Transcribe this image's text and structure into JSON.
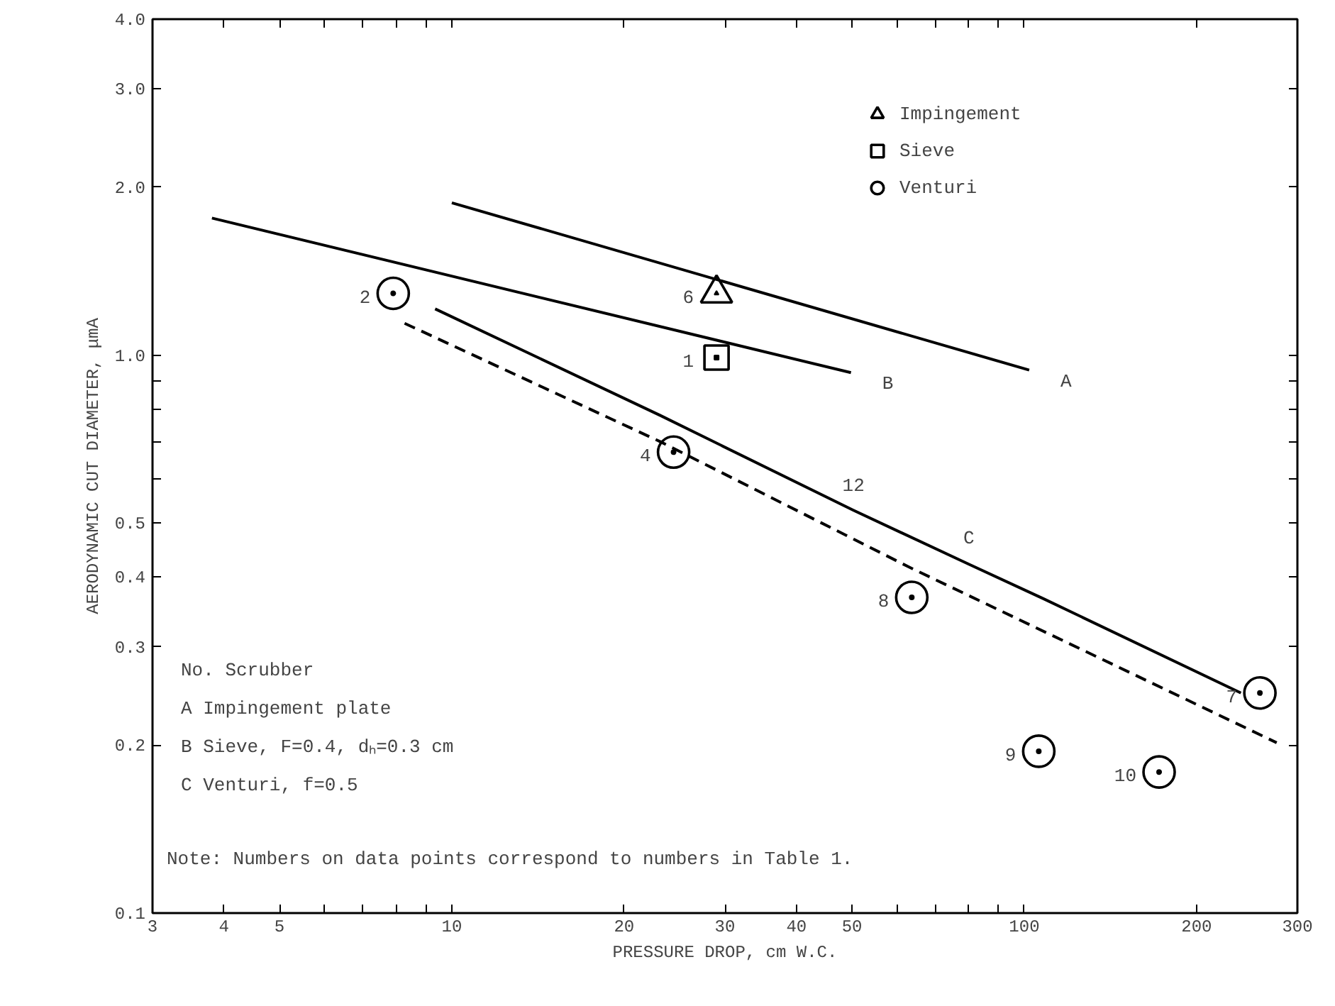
{
  "chart_data": {
    "type": "scatter",
    "xlabel": "PRESSURE DROP, cm W.C.",
    "ylabel": "AERODYNAMIC CUT DIAMETER, μmA",
    "log": "xy",
    "xlim": [
      3,
      300
    ],
    "ylim": [
      0.1,
      4.0
    ],
    "xticks": [
      3,
      4,
      5,
      {
        "value": 6,
        "label": null
      },
      {
        "value": 7,
        "label": null
      },
      {
        "value": 8,
        "label": null
      },
      {
        "value": 9,
        "label": null
      },
      10,
      20,
      30,
      40,
      50,
      {
        "value": 60,
        "label": null
      },
      {
        "value": 70,
        "label": null
      },
      {
        "value": 80,
        "label": null
      },
      {
        "value": 90,
        "label": null
      },
      100,
      200,
      300
    ],
    "yticks": [
      0.1,
      0.2,
      0.3,
      0.4,
      0.5,
      {
        "value": 0.6,
        "label": null
      },
      {
        "value": 0.7,
        "label": null
      },
      {
        "value": 0.8,
        "label": null
      },
      {
        "value": 0.9,
        "label": null
      },
      {
        "value": 1,
        "label": "1.0"
      },
      {
        "value": 2,
        "label": "2.0"
      },
      {
        "value": 3,
        "label": "3.0"
      },
      {
        "value": 4,
        "label": "4.0"
      }
    ],
    "grid": false,
    "legend": "top right",
    "series": [
      {
        "name": "Impingement",
        "type": "scatter",
        "marker": "triangle",
        "color": "#000000",
        "x": [
          29
        ],
        "values": [
          1.29
        ]
      },
      {
        "name": "Sieve",
        "type": "scatter",
        "marker": "square",
        "color": "#000000",
        "x": [
          29
        ],
        "values": [
          0.99
        ]
      },
      {
        "name": "Venturi",
        "marker": "circle",
        "color": "#000000",
        "x": [
          7.9,
          24.4,
          63.6,
          258,
          106,
          172
        ],
        "values": [
          1.29,
          0.67,
          0.368,
          0.248,
          0.195,
          0.179
        ]
      },
      {
        "type": "line",
        "line_style": "solid",
        "color": "#000000",
        "x": [
          10,
          102
        ],
        "values": [
          1.875,
          0.94
        ]
      },
      {
        "type": "line",
        "line_style": "solid",
        "color": "#000000",
        "x": [
          3.81,
          49.8
        ],
        "values": [
          1.76,
          0.93
        ]
      },
      {
        "type": "line",
        "line_style": "solid",
        "color": "#000000",
        "x": [
          9.35,
          23.1,
          50.3,
          80,
          108,
          239
        ],
        "values": [
          1.21,
          0.78,
          0.527,
          0.422,
          0.366,
          0.248
        ]
      },
      {
        "type": "line",
        "line_style": "dashed",
        "color": "#000000",
        "x": [
          8.27,
          23.1,
          62.9,
          276
        ],
        "values": [
          1.14,
          0.7,
          0.417,
          0.202
        ]
      }
    ],
    "annotations": [
      {
        "text": "A",
        "x": 102,
        "y": 0.94
      },
      {
        "text": "B",
        "x": 49.8,
        "y": 0.93
      },
      {
        "text": "C",
        "x": 80,
        "y": 0.422
      },
      {
        "text": "12",
        "x": 50.3,
        "y": 0.527
      },
      {
        "text": "6",
        "x": 29,
        "y": 1.29
      },
      {
        "text": "1",
        "x": 29,
        "y": 0.99
      },
      {
        "text": "2",
        "x": 7.9,
        "y": 1.29
      },
      {
        "text": "4",
        "x": 24.4,
        "y": 0.67
      },
      {
        "text": "8",
        "x": 63.6,
        "y": 0.368
      },
      {
        "text": "7",
        "x": 258,
        "y": 0.248
      },
      {
        "text": "9",
        "x": 106,
        "y": 0.195
      },
      {
        "text": "10",
        "x": 172,
        "y": 0.179
      },
      "No.     Scrubber",
      " A   Impingement plate",
      " B   Sieve, F=0.4, dₕ=0.3 cm",
      " C   Venturi, f=0.5",
      "Note: Numbers on data points correspond to numbers in Table 1."
    ]
  }
}
